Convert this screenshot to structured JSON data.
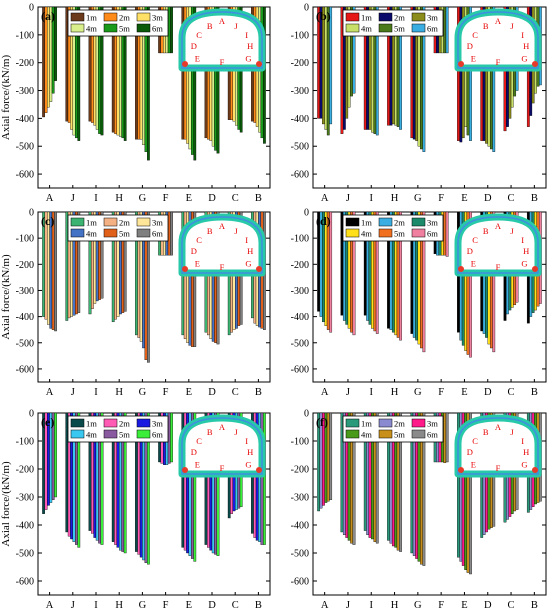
{
  "figure": {
    "panel_labels": [
      "(a)",
      "(b)",
      "(c)",
      "(d)",
      "(e)",
      "(f)"
    ],
    "ylabel": "Axial force/(kN/m)",
    "tunnel_points": [
      "A",
      "J",
      "I",
      "H",
      "G",
      "F",
      "E",
      "D",
      "C",
      "B"
    ]
  },
  "chart_data": [
    {
      "type": "bar",
      "panel": "(a)",
      "categories": [
        "A",
        "J",
        "I",
        "H",
        "G",
        "F",
        "E",
        "D",
        "C",
        "B"
      ],
      "ylim": [
        -650,
        0
      ],
      "yticks": [
        "0",
        "-100",
        "-200",
        "-300",
        "-400",
        "-500",
        "-600"
      ],
      "ylabel": "Axial force/(kN/m)",
      "legend_position": "top-left",
      "series": [
        {
          "name": "1m",
          "color": "#6b3a1a",
          "values": [
            -395,
            -410,
            -410,
            -450,
            -475,
            -165,
            -475,
            -470,
            -405,
            -410
          ]
        },
        {
          "name": "2m",
          "color": "#ff8c1a",
          "values": [
            -380,
            -415,
            -415,
            -455,
            -475,
            -165,
            -475,
            -475,
            -405,
            -415
          ]
        },
        {
          "name": "3m",
          "color": "#ffe066",
          "values": [
            -360,
            -440,
            -425,
            -460,
            -475,
            -165,
            -490,
            -480,
            -410,
            -430
          ]
        },
        {
          "name": "4m",
          "color": "#d9ef8b",
          "values": [
            -340,
            -460,
            -440,
            -465,
            -495,
            -165,
            -510,
            -500,
            -425,
            -450
          ]
        },
        {
          "name": "5m",
          "color": "#1a9a1a",
          "values": [
            -310,
            -470,
            -455,
            -470,
            -520,
            -165,
            -530,
            -515,
            -440,
            -470
          ]
        },
        {
          "name": "6m",
          "color": "#0a5a0a",
          "values": [
            -265,
            -480,
            -460,
            -480,
            -550,
            -165,
            -550,
            -525,
            -450,
            -490
          ]
        }
      ]
    },
    {
      "type": "bar",
      "panel": "(b)",
      "categories": [
        "A",
        "J",
        "I",
        "H",
        "G",
        "F",
        "E",
        "D",
        "C",
        "B"
      ],
      "ylim": [
        -650,
        0
      ],
      "yticks": [
        "0",
        "-100",
        "-200",
        "-300",
        "-400",
        "-500",
        "-600"
      ],
      "legend_position": "top-left",
      "series": [
        {
          "name": "1m",
          "color": "#e61919",
          "values": [
            -400,
            -455,
            -440,
            -425,
            -470,
            -165,
            -480,
            -480,
            -445,
            -430
          ]
        },
        {
          "name": "2m",
          "color": "#0a0a6b",
          "values": [
            -400,
            -440,
            -440,
            -425,
            -475,
            -165,
            -485,
            -480,
            -430,
            -390
          ]
        },
        {
          "name": "3m",
          "color": "#8c8c1a",
          "values": [
            -420,
            -400,
            -440,
            -420,
            -480,
            -165,
            -470,
            -490,
            -400,
            -345
          ]
        },
        {
          "name": "4m",
          "color": "#c8e068",
          "values": [
            -440,
            -360,
            -450,
            -425,
            -500,
            -165,
            -430,
            -500,
            -360,
            -310
          ]
        },
        {
          "name": "5m",
          "color": "#4a7a1a",
          "values": [
            -460,
            -320,
            -455,
            -430,
            -510,
            -165,
            -460,
            -510,
            -320,
            -285
          ]
        },
        {
          "name": "6m",
          "color": "#3aaee0",
          "values": [
            -420,
            -310,
            -460,
            -440,
            -520,
            -165,
            -480,
            -520,
            -300,
            -280
          ]
        }
      ]
    },
    {
      "type": "bar",
      "panel": "(c)",
      "categories": [
        "A",
        "J",
        "I",
        "H",
        "G",
        "F",
        "E",
        "D",
        "C",
        "B"
      ],
      "ylim": [
        -650,
        0
      ],
      "yticks": [
        "0",
        "-100",
        "-200",
        "-300",
        "-400",
        "-500",
        "-600"
      ],
      "ylabel": "Axial force/(kN/m)",
      "legend_position": "top-left",
      "series": [
        {
          "name": "1m",
          "color": "#3cb371",
          "values": [
            -400,
            -415,
            -390,
            -420,
            -470,
            -165,
            -470,
            -460,
            -470,
            -405
          ]
        },
        {
          "name": "2m",
          "color": "#f4b183",
          "values": [
            -410,
            -405,
            -370,
            -410,
            -480,
            -165,
            -485,
            -470,
            -460,
            -425
          ]
        },
        {
          "name": "3m",
          "color": "#ffe699",
          "values": [
            -430,
            -400,
            -350,
            -400,
            -495,
            -165,
            -500,
            -485,
            -450,
            -435
          ]
        },
        {
          "name": "4m",
          "color": "#4472c4",
          "values": [
            -445,
            -395,
            -340,
            -390,
            -520,
            -165,
            -510,
            -495,
            -445,
            -440
          ]
        },
        {
          "name": "5m",
          "color": "#e0601a",
          "values": [
            -450,
            -390,
            -335,
            -385,
            -565,
            -165,
            -515,
            -500,
            -435,
            -445
          ]
        },
        {
          "name": "6m",
          "color": "#7f7f7f",
          "values": [
            -455,
            -385,
            -330,
            -380,
            -575,
            -165,
            -515,
            -505,
            -430,
            -450
          ]
        }
      ]
    },
    {
      "type": "bar",
      "panel": "(d)",
      "categories": [
        "A",
        "J",
        "I",
        "H",
        "G",
        "F",
        "E",
        "D",
        "C",
        "B"
      ],
      "ylim": [
        -650,
        0
      ],
      "yticks": [
        "0",
        "-100",
        "-200",
        "-300",
        "-400",
        "-500",
        "-600"
      ],
      "legend_position": "top-left",
      "series": [
        {
          "name": "1m",
          "color": "#000000",
          "values": [
            -380,
            -395,
            -395,
            -445,
            -465,
            -160,
            -460,
            -455,
            -415,
            -425
          ]
        },
        {
          "name": "2m",
          "color": "#3aaee0",
          "values": [
            -400,
            -415,
            -415,
            -450,
            -480,
            -165,
            -490,
            -465,
            -390,
            -400
          ]
        },
        {
          "name": "3m",
          "color": "#1a8a6a",
          "values": [
            -420,
            -430,
            -430,
            -460,
            -490,
            -165,
            -510,
            -480,
            -375,
            -385
          ]
        },
        {
          "name": "4m",
          "color": "#ffe01a",
          "values": [
            -435,
            -445,
            -445,
            -470,
            -505,
            -165,
            -530,
            -505,
            -365,
            -375
          ]
        },
        {
          "name": "5m",
          "color": "#f07020",
          "values": [
            -450,
            -460,
            -455,
            -480,
            -520,
            -165,
            -545,
            -520,
            -355,
            -360
          ]
        },
        {
          "name": "6m",
          "color": "#f080a0",
          "values": [
            -460,
            -470,
            -465,
            -490,
            -535,
            -170,
            -555,
            -535,
            -345,
            -350
          ]
        }
      ]
    },
    {
      "type": "bar",
      "panel": "(e)",
      "categories": [
        "A",
        "J",
        "I",
        "H",
        "G",
        "F",
        "E",
        "D",
        "C",
        "B"
      ],
      "ylim": [
        -650,
        0
      ],
      "yticks": [
        "0",
        "-100",
        "-200",
        "-300",
        "-400",
        "-500",
        "-600"
      ],
      "ylabel": "Axial force/(kN/m)",
      "legend_position": "top-left",
      "series": [
        {
          "name": "1m",
          "color": "#0a4a4a",
          "values": [
            -360,
            -425,
            -420,
            -460,
            -495,
            -175,
            -480,
            -470,
            -375,
            -430
          ]
        },
        {
          "name": "2m",
          "color": "#ff5ab4",
          "values": [
            -345,
            -440,
            -430,
            -470,
            -505,
            -180,
            -490,
            -480,
            -360,
            -445
          ]
        },
        {
          "name": "3m",
          "color": "#1a1ae0",
          "values": [
            -330,
            -450,
            -445,
            -480,
            -515,
            -185,
            -500,
            -490,
            -350,
            -455
          ]
        },
        {
          "name": "4m",
          "color": "#3ac8f0",
          "values": [
            -320,
            -460,
            -455,
            -490,
            -525,
            -185,
            -510,
            -500,
            -345,
            -460
          ]
        },
        {
          "name": "5m",
          "color": "#8a5aa0",
          "values": [
            -310,
            -470,
            -465,
            -495,
            -535,
            -180,
            -520,
            -505,
            -340,
            -470
          ]
        },
        {
          "name": "6m",
          "color": "#3aee3a",
          "values": [
            -300,
            -480,
            -470,
            -500,
            -540,
            -175,
            -530,
            -510,
            -335,
            -470
          ]
        }
      ]
    },
    {
      "type": "bar",
      "panel": "(f)",
      "categories": [
        "A",
        "J",
        "I",
        "H",
        "G",
        "F",
        "E",
        "D",
        "C",
        "B"
      ],
      "ylim": [
        -650,
        0
      ],
      "yticks": [
        "0",
        "-100",
        "-200",
        "-300",
        "-400",
        "-500",
        "-600"
      ],
      "legend_position": "top-left",
      "series": [
        {
          "name": "1m",
          "color": "#2a9a7a",
          "values": [
            -350,
            -425,
            -420,
            -455,
            -500,
            -175,
            -515,
            -445,
            -390,
            -355
          ]
        },
        {
          "name": "2m",
          "color": "#8a8ad0",
          "values": [
            -340,
            -435,
            -435,
            -465,
            -510,
            -175,
            -530,
            -435,
            -380,
            -345
          ]
        },
        {
          "name": "3m",
          "color": "#ff1a8a",
          "values": [
            -330,
            -445,
            -445,
            -475,
            -520,
            -175,
            -545,
            -425,
            -370,
            -335
          ]
        },
        {
          "name": "4m",
          "color": "#4a9a1a",
          "values": [
            -320,
            -455,
            -450,
            -480,
            -530,
            -175,
            -560,
            -415,
            -360,
            -325
          ]
        },
        {
          "name": "5m",
          "color": "#c8901a",
          "values": [
            -315,
            -465,
            -460,
            -490,
            -540,
            -178,
            -570,
            -410,
            -350,
            -320
          ]
        },
        {
          "name": "6m",
          "color": "#8a8a8a",
          "values": [
            -310,
            -470,
            -465,
            -495,
            -545,
            -175,
            -575,
            -405,
            -345,
            -315
          ]
        }
      ]
    }
  ]
}
